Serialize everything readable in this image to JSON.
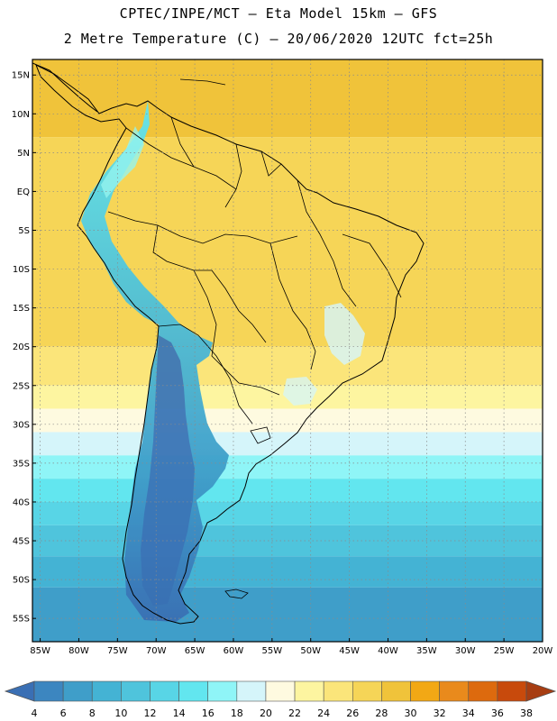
{
  "header": {
    "line1": "CPTEC/INPE/MCT –  Eta Model 15km – GFS",
    "line2": "2 Metre Temperature (C) – 20/06/2020 12UTC fct=25h"
  },
  "map": {
    "lon_range": [
      -86,
      -20
    ],
    "lat_range": [
      -58,
      17
    ],
    "lat_ticks": [
      {
        "value": 15,
        "label": "15N"
      },
      {
        "value": 10,
        "label": "10N"
      },
      {
        "value": 5,
        "label": "5N"
      },
      {
        "value": 0,
        "label": "EQ"
      },
      {
        "value": -5,
        "label": "5S"
      },
      {
        "value": -10,
        "label": "10S"
      },
      {
        "value": -15,
        "label": "15S"
      },
      {
        "value": -20,
        "label": "20S"
      },
      {
        "value": -25,
        "label": "25S"
      },
      {
        "value": -30,
        "label": "30S"
      },
      {
        "value": -35,
        "label": "35S"
      },
      {
        "value": -40,
        "label": "40S"
      },
      {
        "value": -45,
        "label": "45S"
      },
      {
        "value": -50,
        "label": "50S"
      },
      {
        "value": -55,
        "label": "55S"
      }
    ],
    "lon_ticks": [
      {
        "value": -85,
        "label": "85W"
      },
      {
        "value": -80,
        "label": "80W"
      },
      {
        "value": -75,
        "label": "75W"
      },
      {
        "value": -70,
        "label": "70W"
      },
      {
        "value": -65,
        "label": "65W"
      },
      {
        "value": -60,
        "label": "60W"
      },
      {
        "value": -55,
        "label": "55W"
      },
      {
        "value": -50,
        "label": "50W"
      },
      {
        "value": -45,
        "label": "45W"
      },
      {
        "value": -40,
        "label": "40W"
      },
      {
        "value": -35,
        "label": "35W"
      },
      {
        "value": -30,
        "label": "30W"
      },
      {
        "value": -25,
        "label": "25W"
      },
      {
        "value": -20,
        "label": "20W"
      }
    ],
    "temperature_bands": [
      {
        "temp": 28,
        "from_lat": 17,
        "to_lat": 7
      },
      {
        "temp": 27,
        "from_lat": 7,
        "to_lat": -5
      },
      {
        "temp": 26,
        "from_lat": -5,
        "to_lat": -20
      },
      {
        "temp": 25,
        "from_lat": -20,
        "to_lat": -25
      },
      {
        "temp": 23,
        "from_lat": -25,
        "to_lat": -28
      },
      {
        "temp": 21,
        "from_lat": -28,
        "to_lat": -31
      },
      {
        "temp": 19,
        "from_lat": -31,
        "to_lat": -34
      },
      {
        "temp": 17,
        "from_lat": -34,
        "to_lat": -37
      },
      {
        "temp": 15,
        "from_lat": -37,
        "to_lat": -40
      },
      {
        "temp": 13,
        "from_lat": -40,
        "to_lat": -43
      },
      {
        "temp": 11,
        "from_lat": -43,
        "to_lat": -47
      },
      {
        "temp": 9,
        "from_lat": -47,
        "to_lat": -51
      },
      {
        "temp": 7,
        "from_lat": -51,
        "to_lat": -58
      }
    ]
  },
  "colorbar": {
    "values": [
      "4",
      "6",
      "8",
      "10",
      "12",
      "14",
      "16",
      "18",
      "20",
      "22",
      "24",
      "26",
      "28",
      "30",
      "32",
      "34",
      "36",
      "38"
    ],
    "colors": [
      "#3a6fb4",
      "#3c86c0",
      "#3f9ec9",
      "#44b3d4",
      "#4fc4dc",
      "#58d5e6",
      "#62e6ef",
      "#8ff5f7",
      "#d5f5fa",
      "#fefae0",
      "#fdf5a0",
      "#fbe57a",
      "#f6d557",
      "#f0c33a",
      "#f2a815",
      "#e98a1c",
      "#dd6a0e",
      "#c84a0c",
      "#a73d12"
    ]
  }
}
